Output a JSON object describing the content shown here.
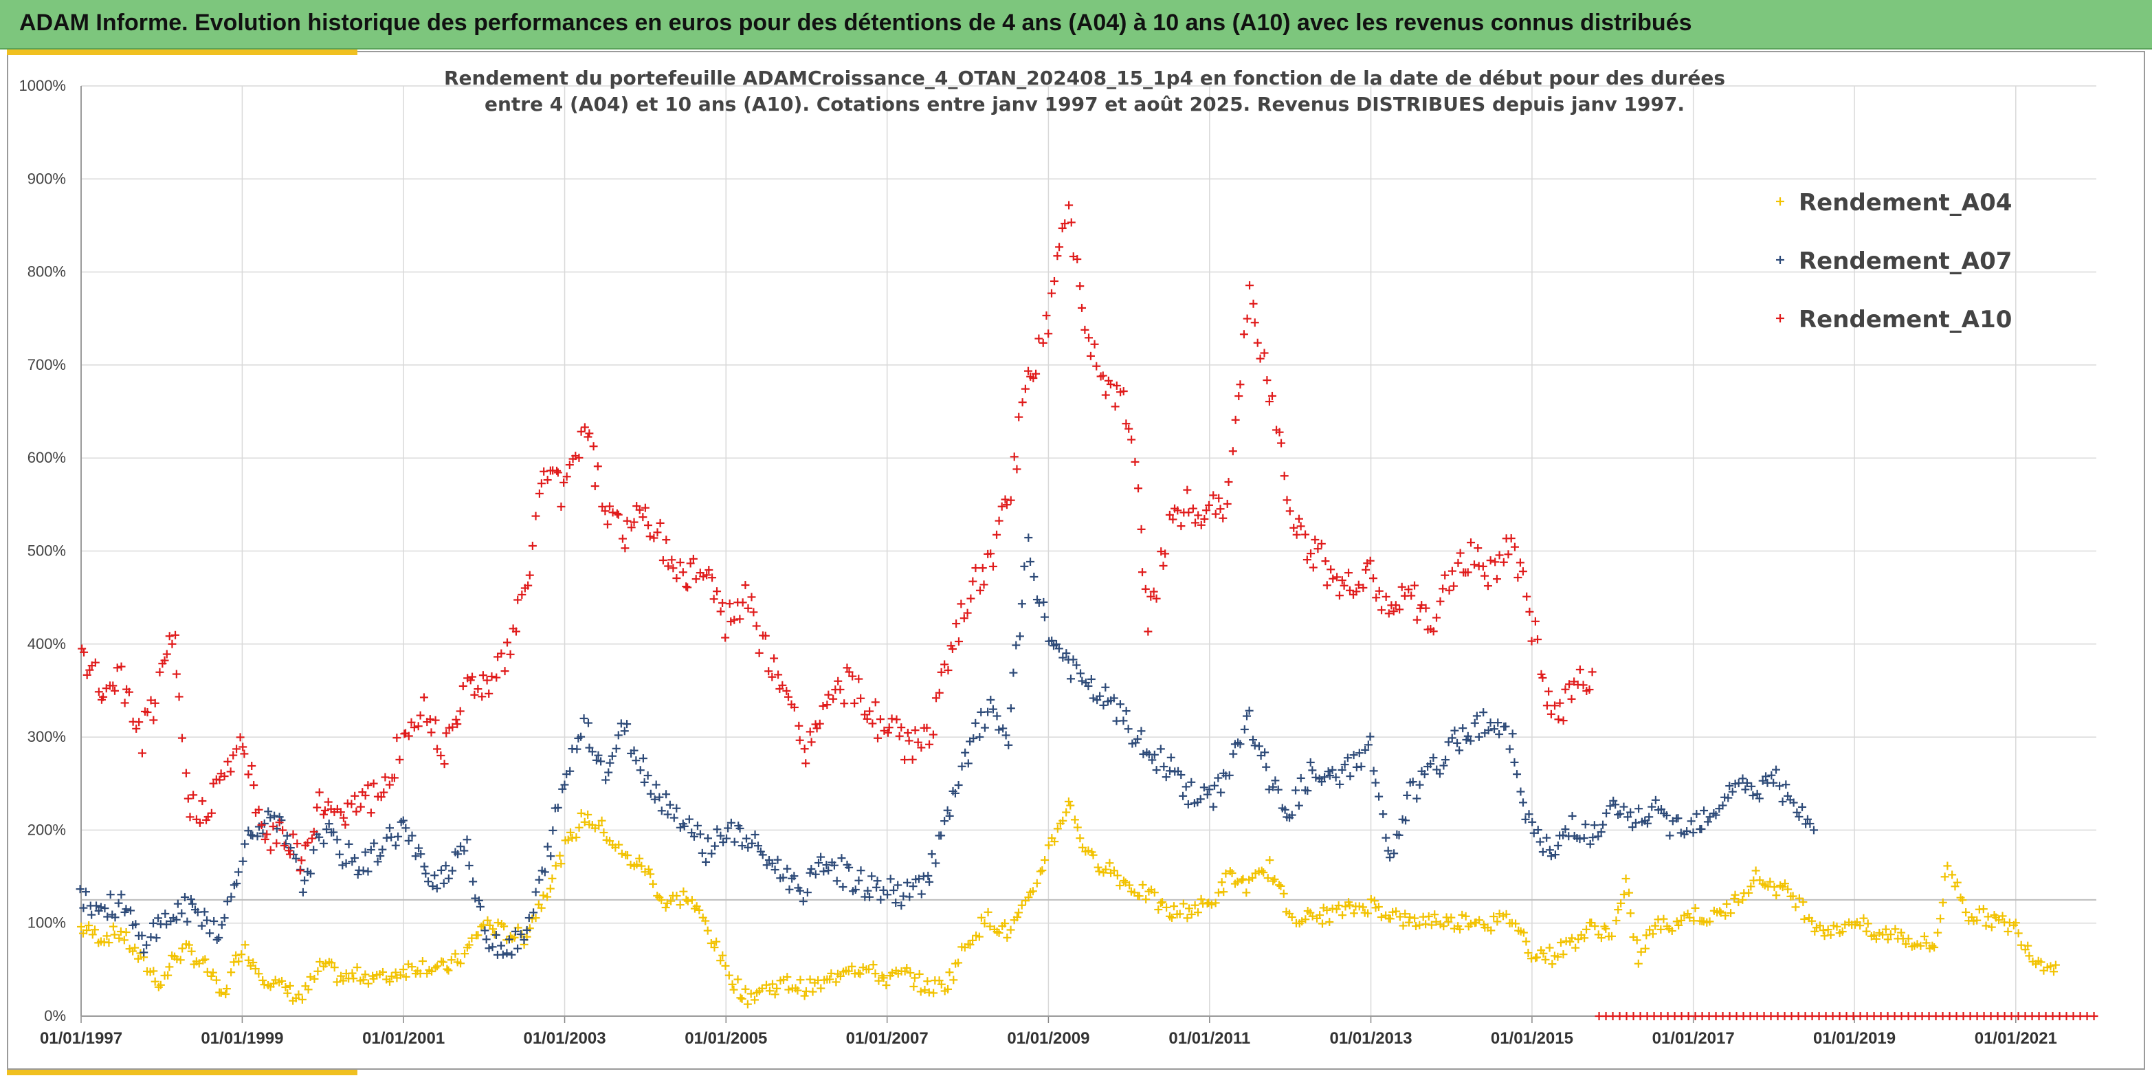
{
  "header": {
    "title": "ADAM Informe. Evolution historique des performances en euros pour des détentions de 4 ans (A04) à 10 ans (A10) avec les revenus connus distribués",
    "banner_color": "#7dc67d",
    "accent_color": "#f0c020"
  },
  "chart_data": {
    "type": "scatter",
    "title_lines": [
      "Rendement du portefeuille ADAMCroissance_4_OTAN_202408_15_1p4  en fonction de la date de début pour des durées",
      "entre 4 (A04) et 10 ans (A10). Cotations entre janv 1997 et août 2025. Revenus DISTRIBUES depuis janv 1997."
    ],
    "xlabel": "",
    "ylabel": "",
    "xlim": [
      "1997-01-01",
      "2022-01-01"
    ],
    "ylim": [
      0,
      10
    ],
    "x_tick_labels": [
      "01/01/1997",
      "01/01/1999",
      "01/01/2001",
      "01/01/2003",
      "01/01/2005",
      "01/01/2007",
      "01/01/2009",
      "01/01/2011",
      "01/01/2013",
      "01/01/2015",
      "01/01/2017",
      "01/01/2019",
      "01/01/2021"
    ],
    "y_tick_labels": [
      "0%",
      "100%",
      "200%",
      "300%",
      "400%",
      "500%",
      "600%",
      "700%",
      "800%",
      "900%",
      "1000%"
    ],
    "grid": true,
    "reference_line_y": 1.25,
    "legend_position": "top-right",
    "marker": "+",
    "series": [
      {
        "name": "Rendement_A04",
        "color": "#f2c200",
        "points": [
          [
            "1997-01-01",
            0.95
          ],
          [
            "1997-04-01",
            0.85
          ],
          [
            "1997-07-01",
            0.9
          ],
          [
            "1997-10-01",
            0.6
          ],
          [
            "1998-01-01",
            0.35
          ],
          [
            "1998-03-01",
            0.65
          ],
          [
            "1998-05-01",
            0.7
          ],
          [
            "1998-08-01",
            0.5
          ],
          [
            "1998-10-01",
            0.2
          ],
          [
            "1999-01-01",
            0.75
          ],
          [
            "1999-04-01",
            0.45
          ],
          [
            "1999-07-01",
            0.3
          ],
          [
            "1999-10-01",
            0.2
          ],
          [
            "2000-01-01",
            0.55
          ],
          [
            "2000-04-01",
            0.4
          ],
          [
            "2000-07-01",
            0.45
          ],
          [
            "2000-10-01",
            0.4
          ],
          [
            "2001-01-01",
            0.5
          ],
          [
            "2001-04-01",
            0.55
          ],
          [
            "2001-07-01",
            0.5
          ],
          [
            "2001-10-01",
            0.65
          ],
          [
            "2002-01-01",
            1.0
          ],
          [
            "2002-04-01",
            0.9
          ],
          [
            "2002-07-01",
            0.85
          ],
          [
            "2002-10-01",
            1.3
          ],
          [
            "2003-01-01",
            1.8
          ],
          [
            "2003-04-01",
            2.15
          ],
          [
            "2003-07-01",
            2.0
          ],
          [
            "2003-10-01",
            1.7
          ],
          [
            "2004-01-01",
            1.6
          ],
          [
            "2004-04-01",
            1.2
          ],
          [
            "2004-07-01",
            1.3
          ],
          [
            "2004-10-01",
            1.0
          ],
          [
            "2005-01-01",
            0.5
          ],
          [
            "2005-04-01",
            0.2
          ],
          [
            "2005-07-01",
            0.3
          ],
          [
            "2005-10-01",
            0.35
          ],
          [
            "2006-01-01",
            0.3
          ],
          [
            "2006-04-01",
            0.35
          ],
          [
            "2006-07-01",
            0.55
          ],
          [
            "2006-10-01",
            0.5
          ],
          [
            "2007-01-01",
            0.4
          ],
          [
            "2007-04-01",
            0.45
          ],
          [
            "2007-07-01",
            0.3
          ],
          [
            "2007-10-01",
            0.35
          ],
          [
            "2008-01-01",
            0.8
          ],
          [
            "2008-04-01",
            1.05
          ],
          [
            "2008-07-01",
            0.9
          ],
          [
            "2008-10-01",
            1.2
          ],
          [
            "2009-01-01",
            1.8
          ],
          [
            "2009-04-01",
            2.3
          ],
          [
            "2009-07-01",
            1.7
          ],
          [
            "2009-10-01",
            1.6
          ],
          [
            "2010-01-01",
            1.4
          ],
          [
            "2010-04-01",
            1.3
          ],
          [
            "2010-07-01",
            1.1
          ],
          [
            "2010-10-01",
            1.15
          ],
          [
            "2011-01-01",
            1.2
          ],
          [
            "2011-04-01",
            1.5
          ],
          [
            "2011-07-01",
            1.4
          ],
          [
            "2011-10-01",
            1.6
          ],
          [
            "2012-01-01",
            1.1
          ],
          [
            "2012-04-01",
            1.05
          ],
          [
            "2012-07-01",
            1.1
          ],
          [
            "2012-10-01",
            1.15
          ],
          [
            "2013-01-01",
            1.2
          ],
          [
            "2013-04-01",
            1.1
          ],
          [
            "2013-07-01",
            1.0
          ],
          [
            "2013-10-01",
            1.05
          ],
          [
            "2014-01-01",
            1.0
          ],
          [
            "2014-04-01",
            1.05
          ],
          [
            "2014-07-01",
            1.0
          ],
          [
            "2014-10-01",
            1.05
          ],
          [
            "2015-01-01",
            0.7
          ],
          [
            "2015-04-01",
            0.65
          ],
          [
            "2015-07-01",
            0.8
          ],
          [
            "2015-10-01",
            0.95
          ],
          [
            "2016-01-01",
            0.9
          ],
          [
            "2016-03-01",
            1.4
          ],
          [
            "2016-05-01",
            0.6
          ],
          [
            "2016-07-01",
            0.95
          ],
          [
            "2016-10-01",
            1.0
          ],
          [
            "2017-01-01",
            1.1
          ],
          [
            "2017-04-01",
            1.05
          ],
          [
            "2017-07-01",
            1.2
          ],
          [
            "2017-10-01",
            1.5
          ],
          [
            "2018-01-01",
            1.4
          ],
          [
            "2018-04-01",
            1.3
          ],
          [
            "2018-07-01",
            1.0
          ],
          [
            "2018-10-01",
            0.9
          ],
          [
            "2019-01-01",
            1.05
          ],
          [
            "2019-04-01",
            0.85
          ],
          [
            "2019-07-01",
            0.9
          ],
          [
            "2019-10-01",
            0.8
          ],
          [
            "2020-01-01",
            0.75
          ],
          [
            "2020-03-01",
            1.6
          ],
          [
            "2020-06-01",
            1.1
          ],
          [
            "2020-09-01",
            1.05
          ],
          [
            "2021-01-01",
            0.95
          ],
          [
            "2021-04-01",
            0.6
          ],
          [
            "2021-07-01",
            0.55
          ]
        ]
      },
      {
        "name": "Rendement_A07",
        "color": "#2d4a78",
        "points": [
          [
            "1997-01-01",
            1.3
          ],
          [
            "1997-04-01",
            1.15
          ],
          [
            "1997-07-01",
            1.2
          ],
          [
            "1997-10-01",
            0.8
          ],
          [
            "1998-01-01",
            1.0
          ],
          [
            "1998-04-01",
            1.15
          ],
          [
            "1998-07-01",
            1.1
          ],
          [
            "1998-10-01",
            0.9
          ],
          [
            "1999-01-01",
            1.8
          ],
          [
            "1999-04-01",
            2.1
          ],
          [
            "1999-07-01",
            2.0
          ],
          [
            "1999-10-01",
            1.4
          ],
          [
            "2000-01-01",
            2.0
          ],
          [
            "2000-04-01",
            1.75
          ],
          [
            "2000-07-01",
            1.6
          ],
          [
            "2000-10-01",
            1.85
          ],
          [
            "2001-01-01",
            2.05
          ],
          [
            "2001-04-01",
            1.55
          ],
          [
            "2001-07-01",
            1.5
          ],
          [
            "2001-10-01",
            1.9
          ],
          [
            "2002-01-01",
            0.9
          ],
          [
            "2002-04-01",
            0.75
          ],
          [
            "2002-07-01",
            0.8
          ],
          [
            "2002-10-01",
            1.6
          ],
          [
            "2003-01-01",
            2.5
          ],
          [
            "2003-04-01",
            3.2
          ],
          [
            "2003-07-01",
            2.6
          ],
          [
            "2003-10-01",
            3.1
          ],
          [
            "2004-01-01",
            2.6
          ],
          [
            "2004-04-01",
            2.3
          ],
          [
            "2004-07-01",
            2.1
          ],
          [
            "2004-10-01",
            1.8
          ],
          [
            "2005-01-01",
            2.0
          ],
          [
            "2005-04-01",
            1.9
          ],
          [
            "2005-07-01",
            1.7
          ],
          [
            "2005-10-01",
            1.5
          ],
          [
            "2006-01-01",
            1.35
          ],
          [
            "2006-04-01",
            1.7
          ],
          [
            "2006-07-01",
            1.5
          ],
          [
            "2006-10-01",
            1.4
          ],
          [
            "2007-01-01",
            1.35
          ],
          [
            "2007-04-01",
            1.3
          ],
          [
            "2007-07-01",
            1.5
          ],
          [
            "2007-10-01",
            2.1
          ],
          [
            "2008-01-01",
            2.8
          ],
          [
            "2008-04-01",
            3.3
          ],
          [
            "2008-07-01",
            3.0
          ],
          [
            "2008-10-01",
            5.0
          ],
          [
            "2009-01-01",
            4.1
          ],
          [
            "2009-04-01",
            3.8
          ],
          [
            "2009-07-01",
            3.5
          ],
          [
            "2009-10-01",
            3.4
          ],
          [
            "2010-01-01",
            3.1
          ],
          [
            "2010-04-01",
            2.8
          ],
          [
            "2010-07-01",
            2.7
          ],
          [
            "2010-10-01",
            2.4
          ],
          [
            "2011-01-01",
            2.3
          ],
          [
            "2011-04-01",
            2.7
          ],
          [
            "2011-07-01",
            3.2
          ],
          [
            "2011-10-01",
            2.5
          ],
          [
            "2012-01-01",
            2.2
          ],
          [
            "2012-04-01",
            2.6
          ],
          [
            "2012-07-01",
            2.5
          ],
          [
            "2012-10-01",
            2.7
          ],
          [
            "2013-01-01",
            2.9
          ],
          [
            "2013-04-01",
            1.6
          ],
          [
            "2013-07-01",
            2.4
          ],
          [
            "2013-10-01",
            2.6
          ],
          [
            "2014-01-01",
            2.9
          ],
          [
            "2014-04-01",
            3.1
          ],
          [
            "2014-07-01",
            3.2
          ],
          [
            "2014-10-01",
            2.9
          ],
          [
            "2015-01-01",
            2.0
          ],
          [
            "2015-04-01",
            1.7
          ],
          [
            "2015-07-01",
            2.1
          ],
          [
            "2015-10-01",
            1.9
          ],
          [
            "2016-01-01",
            2.2
          ],
          [
            "2016-04-01",
            2.1
          ],
          [
            "2016-07-01",
            2.2
          ],
          [
            "2016-10-01",
            2.05
          ],
          [
            "2017-01-01",
            2.1
          ],
          [
            "2017-04-01",
            2.2
          ],
          [
            "2017-07-01",
            2.5
          ],
          [
            "2017-10-01",
            2.4
          ],
          [
            "2018-01-01",
            2.6
          ],
          [
            "2018-04-01",
            2.2
          ],
          [
            "2018-07-01",
            2.0
          ]
        ]
      },
      {
        "name": "Rendement_A10",
        "color": "#e01b1b",
        "points": [
          [
            "1997-01-01",
            3.9
          ],
          [
            "1997-04-01",
            3.5
          ],
          [
            "1997-07-01",
            3.6
          ],
          [
            "1997-10-01",
            3.0
          ],
          [
            "1998-01-01",
            3.6
          ],
          [
            "1998-03-01",
            4.1
          ],
          [
            "1998-05-01",
            2.2
          ],
          [
            "1998-08-01",
            2.3
          ],
          [
            "1998-10-01",
            2.5
          ],
          [
            "1999-01-01",
            3.0
          ],
          [
            "1999-04-01",
            1.9
          ],
          [
            "1999-07-01",
            2.0
          ],
          [
            "1999-10-01",
            1.7
          ],
          [
            "2000-01-01",
            2.3
          ],
          [
            "2000-04-01",
            2.2
          ],
          [
            "2000-07-01",
            2.4
          ],
          [
            "2000-10-01",
            2.3
          ],
          [
            "2001-01-01",
            3.0
          ],
          [
            "2001-04-01",
            3.3
          ],
          [
            "2001-07-01",
            2.9
          ],
          [
            "2001-10-01",
            3.5
          ],
          [
            "2002-01-01",
            3.6
          ],
          [
            "2002-04-01",
            3.8
          ],
          [
            "2002-07-01",
            4.5
          ],
          [
            "2002-10-01",
            5.9
          ],
          [
            "2003-01-01",
            5.6
          ],
          [
            "2003-04-01",
            6.4
          ],
          [
            "2003-07-01",
            5.5
          ],
          [
            "2003-10-01",
            5.2
          ],
          [
            "2004-01-01",
            5.4
          ],
          [
            "2004-04-01",
            5.0
          ],
          [
            "2004-07-01",
            4.7
          ],
          [
            "2004-10-01",
            4.9
          ],
          [
            "2005-01-01",
            4.2
          ],
          [
            "2005-04-01",
            4.5
          ],
          [
            "2005-07-01",
            3.9
          ],
          [
            "2005-10-01",
            3.4
          ],
          [
            "2006-01-01",
            2.9
          ],
          [
            "2006-04-01",
            3.3
          ],
          [
            "2006-07-01",
            3.6
          ],
          [
            "2006-10-01",
            3.3
          ],
          [
            "2007-01-01",
            3.1
          ],
          [
            "2007-04-01",
            2.9
          ],
          [
            "2007-07-01",
            3.0
          ],
          [
            "2007-10-01",
            3.7
          ],
          [
            "2008-01-01",
            4.5
          ],
          [
            "2008-04-01",
            4.8
          ],
          [
            "2008-07-01",
            5.5
          ],
          [
            "2008-10-01",
            6.8
          ],
          [
            "2009-01-01",
            7.5
          ],
          [
            "2009-04-01",
            8.7
          ],
          [
            "2009-07-01",
            7.3
          ],
          [
            "2009-10-01",
            6.8
          ],
          [
            "2010-01-01",
            6.5
          ],
          [
            "2010-04-01",
            4.2
          ],
          [
            "2010-07-01",
            5.3
          ],
          [
            "2010-10-01",
            5.5
          ],
          [
            "2011-01-01",
            5.4
          ],
          [
            "2011-04-01",
            5.6
          ],
          [
            "2011-07-01",
            7.8
          ],
          [
            "2011-10-01",
            6.8
          ],
          [
            "2012-01-01",
            5.5
          ],
          [
            "2012-04-01",
            5.0
          ],
          [
            "2012-07-01",
            4.8
          ],
          [
            "2012-10-01",
            4.6
          ],
          [
            "2013-01-01",
            4.7
          ],
          [
            "2013-04-01",
            4.4
          ],
          [
            "2013-07-01",
            4.5
          ],
          [
            "2013-10-01",
            4.1
          ],
          [
            "2014-01-01",
            4.8
          ],
          [
            "2014-04-01",
            4.9
          ],
          [
            "2014-07-01",
            4.8
          ],
          [
            "2014-10-01",
            5.1
          ],
          [
            "2015-01-01",
            4.2
          ],
          [
            "2015-04-01",
            3.2
          ],
          [
            "2015-07-01",
            3.5
          ],
          [
            "2015-10-01",
            3.7
          ]
        ]
      }
    ],
    "zero_band": {
      "color": "#e01b1b",
      "x_start": "2015-11-01",
      "x_end": "2022-01-01",
      "y": 0
    }
  }
}
